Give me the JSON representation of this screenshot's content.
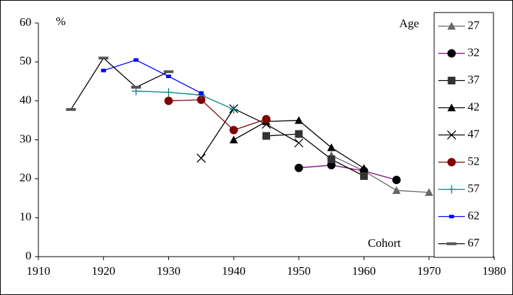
{
  "chart_data": {
    "type": "line",
    "y_label": "%",
    "annotation_top": "Age",
    "x_label": "Cohort",
    "x": [
      1915,
      1920,
      1925,
      1930,
      1935,
      1940,
      1945,
      1950,
      1955,
      1960,
      1965,
      1970
    ],
    "series": [
      {
        "name": "27",
        "color": "#666666",
        "marker_color": "#666666",
        "marker": "triangle",
        "values": [
          null,
          null,
          null,
          null,
          null,
          null,
          null,
          null,
          26,
          22,
          17,
          16.5
        ]
      },
      {
        "name": "32",
        "color": "#800080",
        "marker_color": "#000000",
        "marker": "circle",
        "values": [
          null,
          null,
          null,
          null,
          null,
          null,
          null,
          22.8,
          23.5,
          22,
          19.7,
          null
        ]
      },
      {
        "name": "37",
        "color": "#000000",
        "marker_color": "#333333",
        "marker": "square",
        "values": [
          null,
          null,
          null,
          null,
          null,
          null,
          31,
          31.5,
          25,
          20.7,
          null,
          null
        ]
      },
      {
        "name": "42",
        "color": "#000000",
        "marker_color": "#000000",
        "marker": "triangle",
        "values": [
          null,
          null,
          null,
          null,
          null,
          30,
          34.7,
          35,
          28,
          22.7,
          null,
          null
        ]
      },
      {
        "name": "47",
        "color": "#000000",
        "marker_color": "#000000",
        "marker": "x",
        "values": [
          null,
          null,
          null,
          null,
          25.3,
          38,
          34,
          29.2,
          null,
          null,
          null,
          null
        ]
      },
      {
        "name": "52",
        "color": "#800000",
        "marker_color": "#800000",
        "marker": "circle",
        "values": [
          null,
          null,
          null,
          40,
          40.3,
          32.5,
          35.3,
          null,
          null,
          null,
          null,
          null
        ]
      },
      {
        "name": "57",
        "color": "#008080",
        "marker_color": "#008080",
        "marker": "plus",
        "values": [
          null,
          null,
          42.5,
          42.2,
          41.5,
          37.8,
          null,
          null,
          null,
          null,
          null,
          null
        ]
      },
      {
        "name": "62",
        "color": "#0000ff",
        "marker_color": "#0000ff",
        "marker": "small-square",
        "values": [
          null,
          47.8,
          50.5,
          46.3,
          42,
          null,
          null,
          null,
          null,
          null,
          null,
          null
        ]
      },
      {
        "name": "67",
        "color": "#000000",
        "marker_color": "#555555",
        "marker": "dash",
        "values": [
          37.8,
          51,
          43.5,
          47.5,
          null,
          null,
          null,
          null,
          null,
          null,
          null,
          null
        ]
      }
    ],
    "xlim": [
      1910,
      1980
    ],
    "xticks": [
      1910,
      1920,
      1930,
      1940,
      1950,
      1960,
      1970,
      1980
    ],
    "ylim": [
      0,
      60
    ],
    "yticks": [
      0,
      10,
      20,
      30,
      40,
      50,
      60
    ],
    "grid": false,
    "legend": "right"
  }
}
